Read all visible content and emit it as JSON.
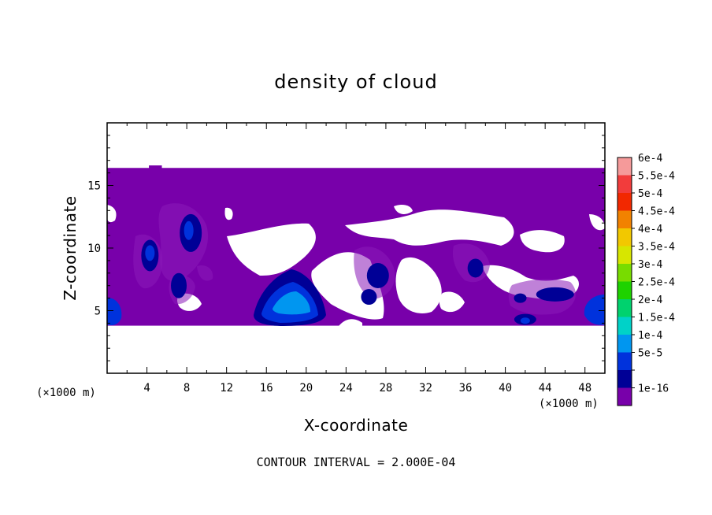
{
  "chart_data": {
    "type": "heatmap",
    "title": "density of cloud",
    "xlabel": "X-coordinate",
    "ylabel": "Z-coordinate",
    "x_unit_left": "(×1000 m)",
    "x_unit_right": "(×1000 m)",
    "footer": "CONTOUR INTERVAL = 2.000E-04",
    "xlim": [
      0,
      50
    ],
    "ylim": [
      0,
      20
    ],
    "x_ticks": [
      4,
      8,
      12,
      16,
      20,
      24,
      28,
      32,
      36,
      40,
      44,
      48
    ],
    "y_ticks": [
      5,
      10,
      15
    ],
    "colorbar": {
      "levels": [
        "6e-4",
        "5.5e-4",
        "5e-4",
        "4.5e-4",
        "4e-4",
        "3.5e-4",
        "3e-4",
        "2.5e-4",
        "2e-4",
        "1.5e-4",
        "1e-4",
        "5e-5",
        "1e-16"
      ],
      "colors": [
        "#f59a9a",
        "#f23c3c",
        "#f22800",
        "#f28200",
        "#f2c800",
        "#d7e600",
        "#78dc00",
        "#1ed200",
        "#00d26e",
        "#00d2c8",
        "#0096f0",
        "#0032dc",
        "#000096",
        "#7800aa"
      ]
    },
    "cloud_base_z": 3.8,
    "cloud_top_z": 16.4,
    "clear_regions": [
      {
        "x": [
          17,
          29
        ],
        "z": [
          3.8,
          9.5
        ],
        "note": "notch"
      },
      {
        "x": [
          21,
          27
        ],
        "z": [
          6,
          10.5
        ]
      },
      {
        "x": [
          30,
          36
        ],
        "z": [
          7.5,
          13
        ]
      },
      {
        "x": [
          38,
          44
        ],
        "z": [
          9,
          12
        ]
      },
      {
        "x": [
          12,
          16
        ],
        "z": [
          7,
          11
        ]
      }
    ],
    "density_cores": [
      {
        "x": 18.5,
        "z": 5.3,
        "level": "1.5e-4"
      },
      {
        "x": 4.3,
        "z": 9.3,
        "level": "5e-5"
      },
      {
        "x": 8.2,
        "z": 11.1,
        "level": "1e-16"
      },
      {
        "x": 27,
        "z": 7.8,
        "level": "1e-16"
      },
      {
        "x": 44.5,
        "z": 6.2,
        "level": "5e-5"
      },
      {
        "x": 0.6,
        "z": 4.9,
        "level": "5e-5"
      },
      {
        "x": 49.5,
        "z": 5.1,
        "level": "5e-5"
      },
      {
        "x": 42,
        "z": 4.4,
        "level": "5e-5"
      }
    ]
  }
}
